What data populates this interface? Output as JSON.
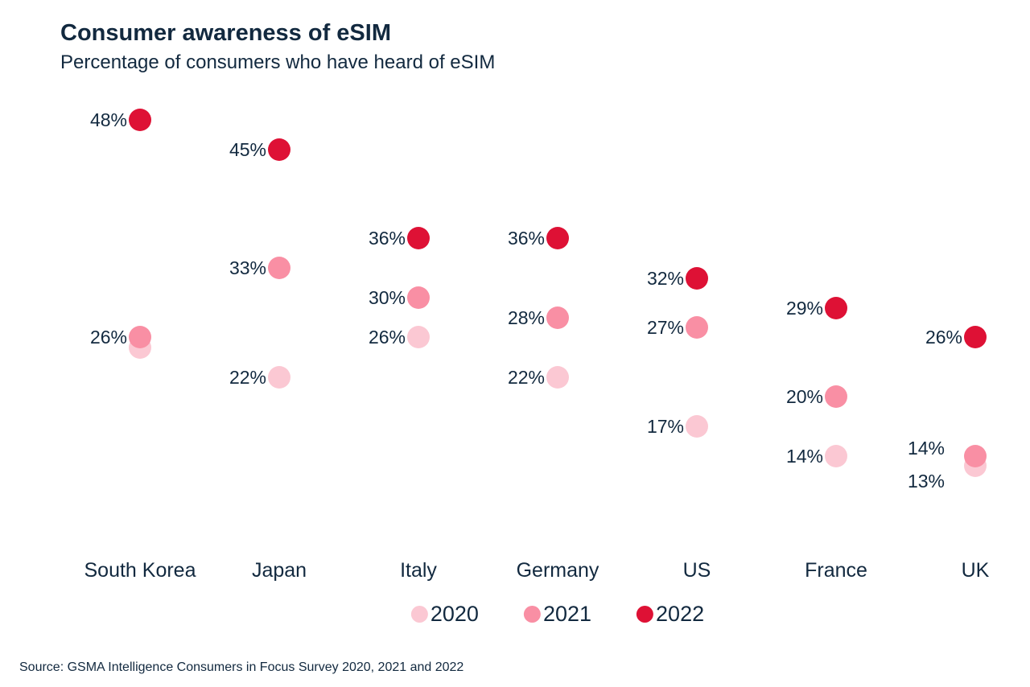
{
  "chart_data": {
    "type": "scatter",
    "title": "Consumer awareness of eSIM",
    "subtitle": "Percentage of consumers who have heard of eSIM",
    "source": "Source: GSMA Intelligence Consumers in Focus Survey 2020, 2021 and 2022",
    "categories": [
      "South Korea",
      "Japan",
      "Italy",
      "Germany",
      "US",
      "France",
      "UK"
    ],
    "value_suffix": "%",
    "legend_position": "bottom",
    "text_color": "#12293F",
    "background_color": "#FFFFFF",
    "ylim": [
      13,
      48
    ],
    "grid": false,
    "series": [
      {
        "name": "2020",
        "color": "#FBC8D3",
        "values": [
          25,
          22,
          26,
          22,
          17,
          14,
          13
        ],
        "labels": [
          "",
          "22%",
          "26%",
          "22%",
          "17%",
          "14%",
          "13%"
        ],
        "label_dx": [
          0,
          0,
          0,
          0,
          0,
          0,
          -22
        ],
        "label_dy": [
          0,
          0,
          0,
          0,
          0,
          0,
          19
        ]
      },
      {
        "name": "2021",
        "color": "#F98FA4",
        "values": [
          26,
          33,
          30,
          28,
          27,
          20,
          14
        ],
        "labels": [
          "26%",
          "33%",
          "30%",
          "28%",
          "27%",
          "20%",
          "14%"
        ],
        "label_dx": [
          0,
          0,
          0,
          0,
          0,
          0,
          -22
        ],
        "label_dy": [
          0,
          0,
          0,
          0,
          0,
          0,
          -10
        ]
      },
      {
        "name": "2022",
        "color": "#DE1135",
        "values": [
          48,
          45,
          36,
          36,
          32,
          29,
          26
        ],
        "labels": [
          "48%",
          "45%",
          "36%",
          "36%",
          "32%",
          "29%",
          "26%"
        ],
        "label_dx": [
          0,
          0,
          0,
          0,
          0,
          0,
          0
        ],
        "label_dy": [
          0,
          0,
          0,
          0,
          0,
          0,
          0
        ]
      }
    ]
  }
}
